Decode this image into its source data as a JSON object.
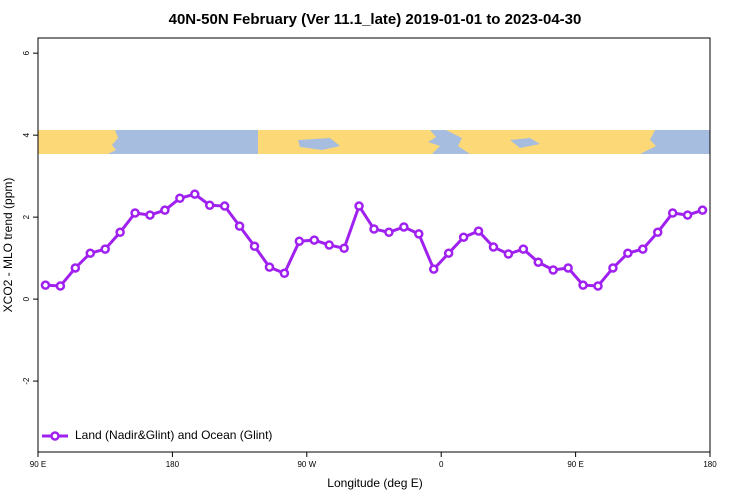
{
  "chart_data": {
    "type": "line",
    "title": "40N-50N February (Ver 11.1_late)   2019-01-01 to 2023-04-30",
    "x_label": "Longitude (deg E)",
    "y_label": "XCO2 - MLO trend (ppm)",
    "x": [
      -265,
      -255,
      -245,
      -235,
      -225,
      -215,
      -205,
      -195,
      -185,
      -175,
      -165,
      -155,
      -145,
      -135,
      -125,
      -115,
      -105,
      -95,
      -85,
      -75,
      -65,
      -55,
      -45,
      -35,
      -25,
      -15,
      -5,
      5,
      15,
      25,
      35,
      45,
      55,
      65,
      75,
      85,
      95,
      105,
      115,
      125,
      135,
      145,
      155,
      165,
      175
    ],
    "series": [
      {
        "name": "Land (Nadir&Glint) and Ocean (Glint)",
        "color": "#a020f0",
        "values": [
          0.34,
          0.32,
          0.76,
          1.12,
          1.22,
          1.63,
          2.1,
          2.05,
          2.17,
          2.46,
          2.56,
          2.29,
          2.27,
          1.78,
          1.29,
          0.78,
          0.63,
          1.41,
          1.44,
          1.32,
          1.24,
          2.27,
          1.71,
          1.63,
          1.76,
          1.59,
          0.73,
          1.12,
          1.51,
          1.66,
          1.27,
          1.1,
          1.22,
          0.9,
          0.71,
          0.76,
          0.34,
          0.32,
          0.76,
          1.12,
          1.22,
          1.63,
          2.1,
          2.05,
          2.17
        ]
      }
    ],
    "xlim": [
      -270,
      180
    ],
    "xticks": [
      {
        "value": -270,
        "label": "90 E"
      },
      {
        "value": -180,
        "label": "180"
      },
      {
        "value": -90,
        "label": "90 W"
      },
      0,
      {
        "value": 90,
        "label": "90 E"
      },
      180
    ],
    "ylim": [
      -3.73,
      6.37
    ],
    "yticks": [
      -2,
      0,
      2,
      4,
      6
    ],
    "legend": "bottom-left"
  }
}
